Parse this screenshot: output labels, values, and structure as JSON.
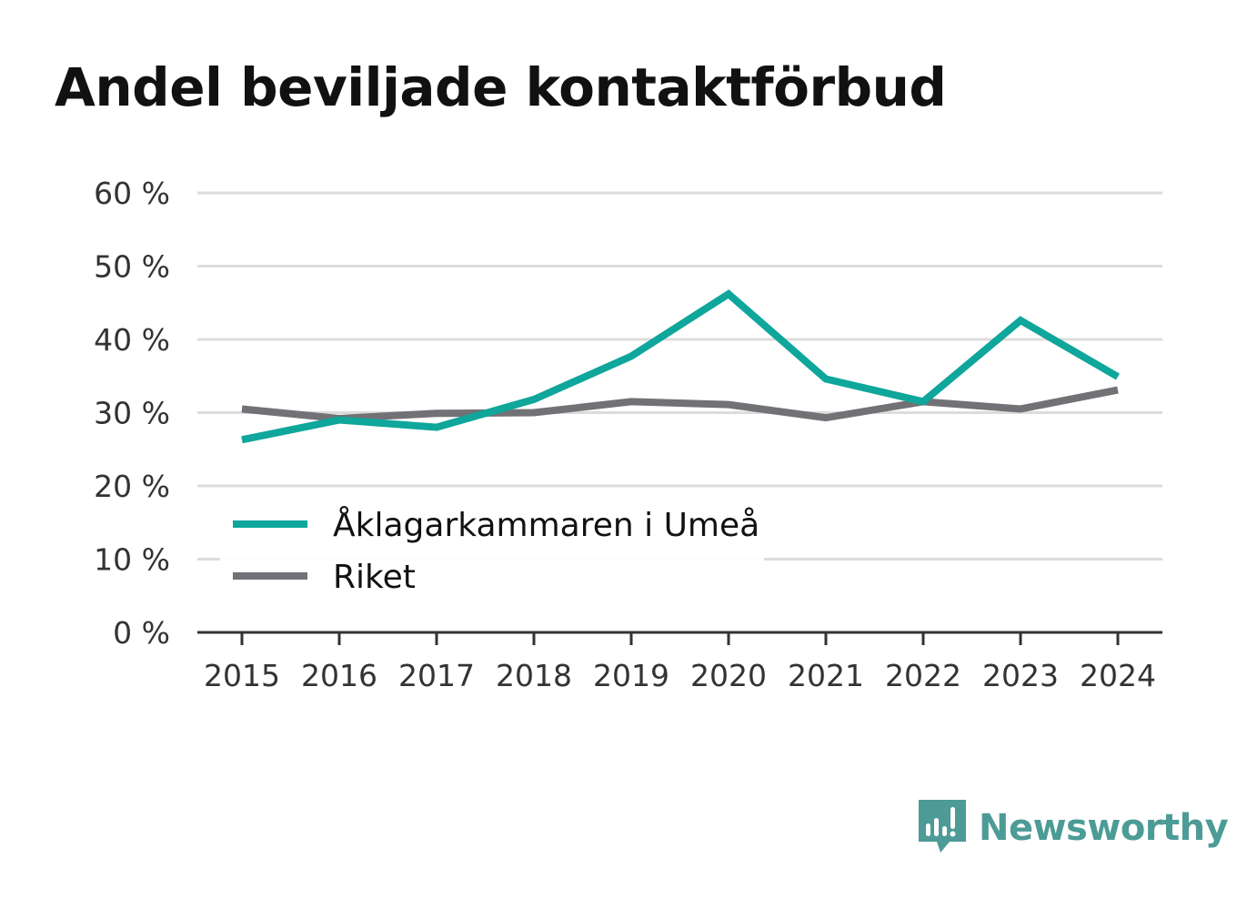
{
  "title": "Andel beviljade kontaktförbud",
  "colors": {
    "umea": "#0fa69b",
    "riket": "#727176",
    "grid": "#dcdcdc",
    "axis": "#333333",
    "brand": "#4c9b96"
  },
  "brand": {
    "name": "Newsworthy",
    "icon": "bar-chart-speech-bubble-icon"
  },
  "chart_data": {
    "type": "line",
    "title": "Andel beviljade kontaktförbud",
    "xlabel": "",
    "ylabel": "",
    "x": [
      "2015",
      "2016",
      "2017",
      "2018",
      "2019",
      "2020",
      "2021",
      "2022",
      "2023",
      "2024"
    ],
    "ylim": [
      0,
      60
    ],
    "yticks": [
      0,
      10,
      20,
      30,
      40,
      50,
      60
    ],
    "ytick_labels": [
      "0 %",
      "10 %",
      "20 %",
      "30 %",
      "40 %",
      "50 %",
      "60 %"
    ],
    "grid": true,
    "legend_position": "bottom-left",
    "series": [
      {
        "name": "Åklagarkammaren i Umeå",
        "color": "#0fa69b",
        "values": [
          26.3,
          29.0,
          28.0,
          31.8,
          37.7,
          46.2,
          34.6,
          31.5,
          42.6,
          34.9
        ]
      },
      {
        "name": "Riket",
        "color": "#727176",
        "values": [
          30.5,
          29.2,
          29.9,
          30.0,
          31.5,
          31.1,
          29.3,
          31.5,
          30.5,
          33.1
        ]
      }
    ]
  }
}
